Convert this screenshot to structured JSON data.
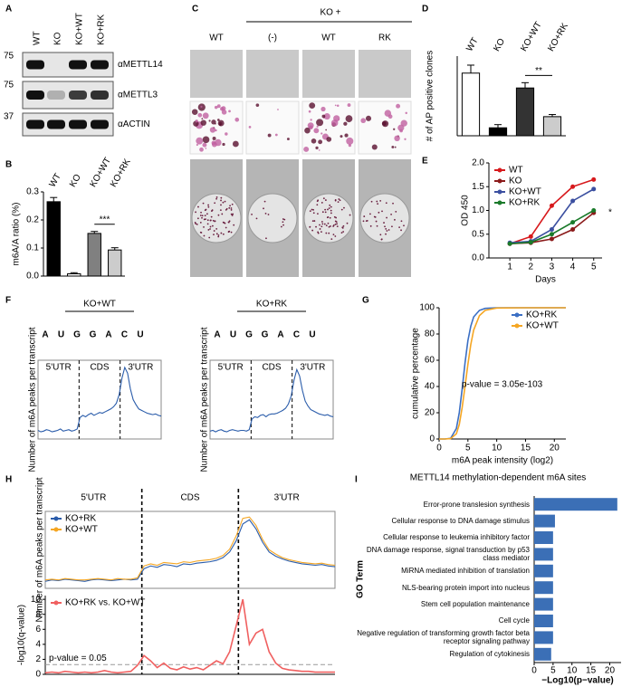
{
  "panel_labels": [
    "A",
    "B",
    "C",
    "D",
    "E",
    "F",
    "G",
    "H",
    "I"
  ],
  "blot": {
    "lanes": [
      "WT",
      "KO",
      "KO+WT",
      "KO+RK"
    ],
    "markers": [
      "75",
      "75",
      "37"
    ],
    "antibodies": [
      "αMETTL14",
      "αMETTL3",
      "αACTIN"
    ]
  },
  "images": {
    "header": "KO +",
    "columns": [
      "WT",
      "(-)",
      "WT",
      "RK"
    ]
  },
  "chart_data": [
    {
      "type": "bar",
      "ylabel": "m6A/A ratio (%)",
      "categories": [
        "WT",
        "KO",
        "KO+WT",
        "KO+RK"
      ],
      "values": [
        0.265,
        0.008,
        0.152,
        0.093
      ],
      "errors": [
        0.015,
        0.004,
        0.007,
        0.008
      ],
      "colors": [
        "#000000",
        "#ffffff",
        "#808080",
        "#cccccc"
      ],
      "ylim": [
        0,
        0.3
      ],
      "yticks": [
        {
          "value": 0,
          "label": "0.0"
        },
        0.1,
        0.2,
        0.3
      ],
      "annotation": "***"
    },
    {
      "type": "bar",
      "ylabel": "# of AP positive clones",
      "categories": [
        "WT",
        "KO",
        "KO+WT",
        "KO+RK"
      ],
      "values": [
        118,
        15,
        90,
        36
      ],
      "errors": [
        15,
        6,
        10,
        4
      ],
      "colors": [
        "#ffffff",
        "#000000",
        "#333333",
        "#cccccc"
      ],
      "ylim": [
        0,
        150
      ],
      "annotation": "**"
    },
    {
      "type": "line",
      "xlabel": "Days",
      "ylabel": "OD 450",
      "x": [
        1,
        2,
        3,
        4,
        5
      ],
      "xlim": [
        0,
        5.4
      ],
      "xticks": [
        1,
        2,
        3,
        4,
        5
      ],
      "ylim": [
        0,
        2
      ],
      "yticks": [
        {
          "value": 0,
          "label": "0.0"
        },
        0.5,
        {
          "value": 1,
          "label": "1.0"
        },
        1.5,
        {
          "value": 2,
          "label": "2.0"
        }
      ],
      "markers": true,
      "legend": "upper left",
      "annotation": "*",
      "series": [
        {
          "name": "WT",
          "color": "#d7191c",
          "values": [
            0.3,
            0.45,
            1.1,
            1.5,
            1.65
          ]
        },
        {
          "name": "KO",
          "color": "#8b1a1a",
          "values": [
            0.3,
            0.32,
            0.4,
            0.6,
            0.95
          ]
        },
        {
          "name": "KO+WT",
          "color": "#3b4fa0",
          "values": [
            0.32,
            0.35,
            0.6,
            1.2,
            1.45
          ]
        },
        {
          "name": "KO+RK",
          "color": "#1a7a2a",
          "values": [
            0.3,
            0.33,
            0.5,
            0.75,
            1.0
          ]
        }
      ]
    },
    {
      "type": "profile",
      "title": "KO+WT",
      "motif": [
        "A",
        "U",
        "G",
        "G",
        "A",
        "C",
        "U"
      ],
      "regions": [
        "5'UTR",
        "CDS",
        "3'UTR"
      ],
      "ylabel": "Number of m6A peaks per transcript",
      "ylim": [
        0,
        1.1
      ],
      "series": [
        {
          "color": "#2a5caa",
          "values": [
            0.12,
            0.1,
            0.11,
            0.13,
            0.12,
            0.1,
            0.11,
            0.12,
            0.14,
            0.11,
            0.12,
            0.13,
            0.11,
            0.12,
            0.14,
            0.3,
            0.33,
            0.31,
            0.34,
            0.36,
            0.33,
            0.35,
            0.37,
            0.36,
            0.38,
            0.4,
            0.42,
            0.45,
            0.5,
            0.62,
            0.85,
            1.0,
            0.92,
            0.7,
            0.55,
            0.48,
            0.42,
            0.4,
            0.38,
            0.36,
            0.35,
            0.34,
            0.35,
            0.33,
            0.32
          ]
        }
      ]
    },
    {
      "type": "profile",
      "title": "KO+RK",
      "motif": [
        "A",
        "U",
        "G",
        "G",
        "A",
        "C",
        "U"
      ],
      "regions": [
        "5'UTR",
        "CDS",
        "3'UTR"
      ],
      "ylabel": "Number of m6A peaks per transcript",
      "ylim": [
        0,
        1.1
      ],
      "series": [
        {
          "color": "#2a5caa",
          "values": [
            0.11,
            0.12,
            0.1,
            0.12,
            0.13,
            0.11,
            0.1,
            0.12,
            0.13,
            0.12,
            0.11,
            0.12,
            0.12,
            0.11,
            0.13,
            0.28,
            0.31,
            0.3,
            0.33,
            0.34,
            0.31,
            0.34,
            0.35,
            0.35,
            0.36,
            0.38,
            0.4,
            0.43,
            0.49,
            0.6,
            0.82,
            0.97,
            0.88,
            0.68,
            0.53,
            0.46,
            0.41,
            0.39,
            0.37,
            0.35,
            0.34,
            0.33,
            0.34,
            0.32,
            0.31
          ]
        }
      ]
    },
    {
      "type": "line",
      "xlabel": "m6A peak intensity (log2)",
      "ylabel": "cumulative percentage",
      "x": [
        0,
        1,
        2,
        3,
        3.5,
        4,
        4.5,
        5,
        5.5,
        6,
        7,
        8,
        10,
        15,
        22
      ],
      "xlim": [
        0,
        22
      ],
      "xticks": [
        0,
        5,
        10,
        15,
        20
      ],
      "ylim": [
        0,
        100
      ],
      "yticks": [
        0,
        20,
        40,
        60,
        80,
        100
      ],
      "legend": "upper right",
      "annotation": "p-value = 3.05e-103",
      "series": [
        {
          "name": "KO+RK",
          "color": "#3b6fc4",
          "values": [
            0,
            0,
            0.5,
            8,
            20,
            38,
            58,
            75,
            86,
            93,
            98,
            99.5,
            100,
            100,
            100
          ]
        },
        {
          "name": "KO+WT",
          "color": "#f5a623",
          "values": [
            0,
            0,
            0.3,
            4,
            11,
            24,
            40,
            57,
            72,
            83,
            94,
            98,
            99.8,
            100,
            100
          ]
        }
      ]
    },
    {
      "type": "profile",
      "regions": [
        "5'UTR",
        "CDS",
        "3'UTR"
      ],
      "ylabel": "Number of m6A peaks per transcript",
      "ylim": [
        0,
        1.1
      ],
      "legend": "upper left",
      "series": [
        {
          "name": "KO+RK",
          "color": "#2a5caa",
          "values": [
            0.1,
            0.12,
            0.11,
            0.13,
            0.12,
            0.11,
            0.1,
            0.12,
            0.13,
            0.12,
            0.11,
            0.12,
            0.13,
            0.12,
            0.13,
            0.28,
            0.32,
            0.3,
            0.34,
            0.33,
            0.31,
            0.35,
            0.34,
            0.36,
            0.37,
            0.38,
            0.4,
            0.44,
            0.52,
            0.68,
            0.92,
            0.98,
            0.85,
            0.66,
            0.52,
            0.46,
            0.42,
            0.39,
            0.37,
            0.35,
            0.34,
            0.33,
            0.34,
            0.32,
            0.31
          ]
        },
        {
          "name": "KO+WT",
          "color": "#f5a623",
          "values": [
            0.12,
            0.13,
            0.12,
            0.14,
            0.13,
            0.12,
            0.12,
            0.13,
            0.14,
            0.13,
            0.12,
            0.14,
            0.13,
            0.13,
            0.15,
            0.32,
            0.35,
            0.33,
            0.37,
            0.36,
            0.35,
            0.38,
            0.37,
            0.39,
            0.4,
            0.41,
            0.43,
            0.47,
            0.56,
            0.75,
            1.0,
            1.02,
            0.9,
            0.7,
            0.55,
            0.49,
            0.44,
            0.41,
            0.39,
            0.37,
            0.36,
            0.35,
            0.36,
            0.34,
            0.33
          ]
        }
      ]
    },
    {
      "type": "line",
      "ylabel": "-log10(q-value)",
      "ylim": [
        0,
        10.5
      ],
      "yticks": [
        0,
        2,
        4,
        6,
        8,
        10
      ],
      "legend": "upper left",
      "threshold": 1.3,
      "threshold_label": "p-value = 0.05",
      "series": [
        {
          "name": "KO+RK vs. KO+WT",
          "color": "#f06060",
          "values": [
            0.2,
            0.3,
            0.2,
            0.4,
            0.3,
            0.2,
            0.3,
            0.2,
            0.3,
            0.5,
            0.3,
            0.2,
            0.3,
            0.4,
            1.2,
            2.5,
            1.8,
            0.9,
            1.5,
            0.8,
            0.6,
            1.0,
            0.7,
            0.9,
            0.6,
            1.2,
            1.8,
            1.4,
            3.0,
            6.5,
            10.0,
            4.0,
            5.5,
            6.0,
            3.0,
            1.5,
            0.8,
            0.6,
            0.5,
            0.4,
            0.4,
            0.3,
            0.3,
            0.3,
            0.3
          ]
        }
      ]
    },
    {
      "type": "hbar",
      "title": "METTL14 methylation-dependent m6A sites",
      "ylabel": "GO Term",
      "xlabel": "−Log10(p−value)",
      "categories": [
        "Error-prone translesion synthesis",
        "Cellular response to DNA damage stimulus",
        "Cellular response to leukemia inhibitory factor",
        "DNA damage response, signal transduction by p53 class mediator",
        "MiRNA mediated inhibition of translation",
        "NLS-bearing protein import into nucleus",
        "Stem cell population maintenance",
        "Cell cycle",
        "Negative regulation of transforming growth factor beta receptor signaling pathway",
        "Regulation of cytokinesis"
      ],
      "values": [
        22,
        5.5,
        5,
        5,
        5,
        5,
        5,
        5,
        5,
        4.5
      ],
      "color": "#3b6fb6",
      "xlim": [
        0,
        23
      ],
      "xticks": [
        0,
        5,
        10,
        15,
        20
      ]
    }
  ]
}
